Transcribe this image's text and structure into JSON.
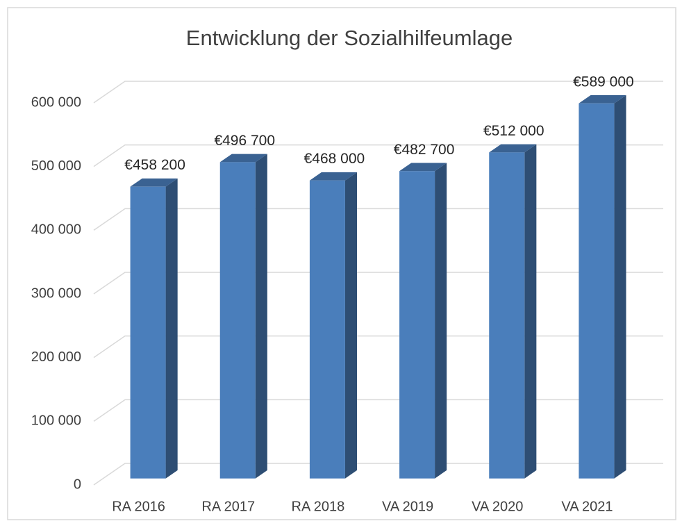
{
  "chart_data": {
    "type": "bar3d",
    "title": "Entwicklung der Sozialhilfeumlage",
    "categories": [
      "RA 2016",
      "RA 2017",
      "RA 2018",
      "VA 2019",
      "VA 2020",
      "VA 2021"
    ],
    "values": [
      458200,
      496700,
      468000,
      482700,
      512000,
      589000
    ],
    "value_labels": [
      "€458 200",
      "€496 700",
      "€468 000",
      "€482 700",
      "€512 000",
      "€589 000"
    ],
    "color": "#4a7ebb",
    "ylim": [
      0,
      600000
    ],
    "yticks": [
      0,
      {
        "value": 100000,
        "label": "100 000"
      },
      {
        "value": 200000,
        "label": "200 000"
      },
      {
        "value": 300000,
        "label": "300 000"
      },
      {
        "value": 400000,
        "label": "400 000"
      },
      {
        "value": 500000,
        "label": "500 000"
      },
      {
        "value": 600000,
        "label": "600 000"
      }
    ],
    "grid": true
  }
}
